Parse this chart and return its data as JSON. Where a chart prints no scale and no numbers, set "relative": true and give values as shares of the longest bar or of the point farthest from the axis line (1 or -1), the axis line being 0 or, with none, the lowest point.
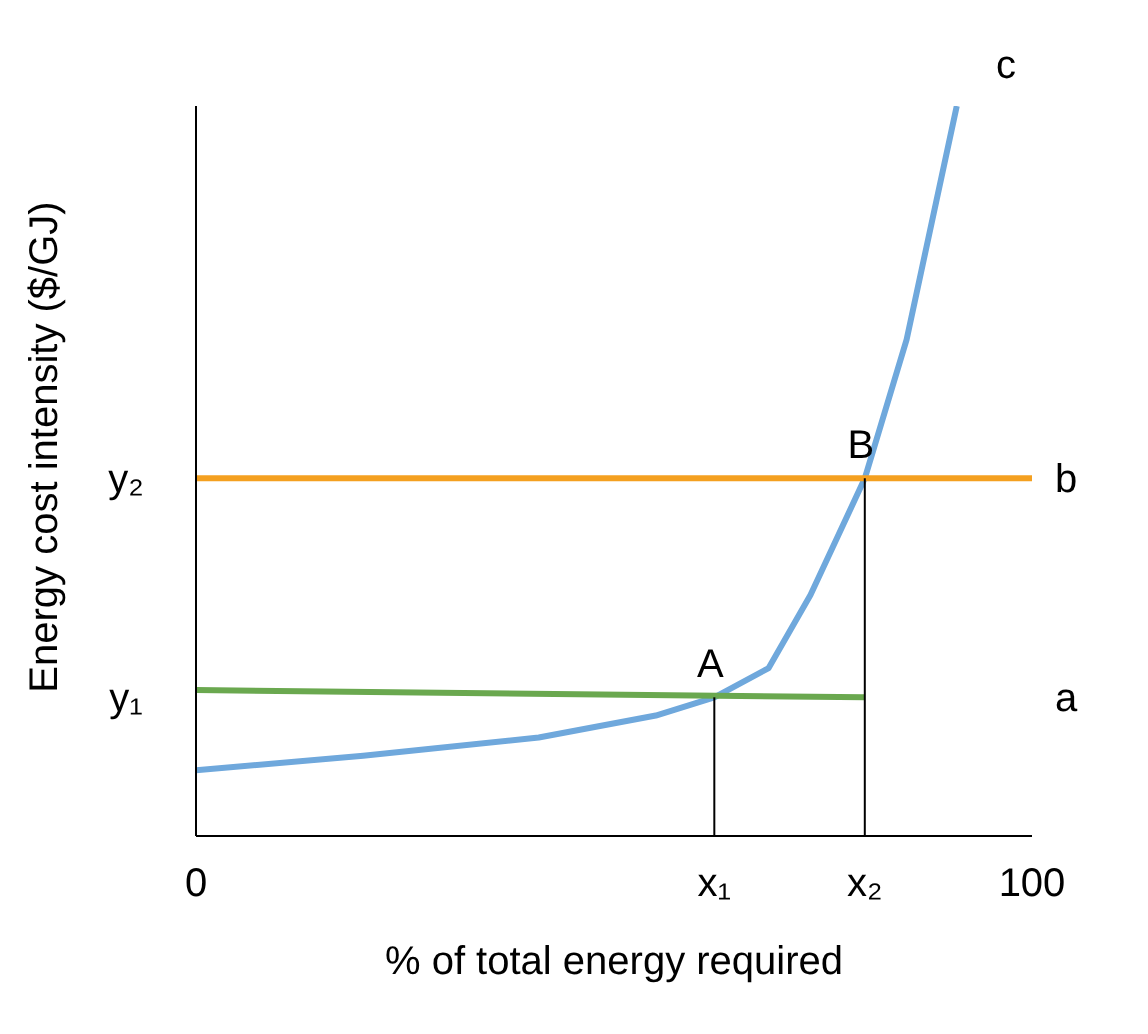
{
  "chart_data": {
    "type": "line",
    "relative": true,
    "xlabel": "% of total energy required",
    "ylabel": "Energy cost intensity ($/GJ)",
    "xlim": [
      0,
      100
    ],
    "xticks": [
      0,
      {
        "value": 62,
        "label": "x₁"
      },
      {
        "value": 80,
        "label": "x₂"
      },
      100
    ],
    "marker": "none",
    "series": [
      {
        "name": "c",
        "color": "#6fa8dc",
        "x": [
          0,
          20,
          41,
          55,
          62,
          68.5,
          73.5,
          80,
          85,
          91
        ],
        "values": [
          0.09,
          0.11,
          0.135,
          0.165,
          0.19,
          0.23,
          0.33,
          0.49,
          0.68,
          1
        ]
      },
      {
        "name": "b",
        "color": "#f4a020",
        "x": [
          0,
          100
        ],
        "values": [
          0.49,
          0.49
        ]
      },
      {
        "name": "a",
        "color": "#6aa84f",
        "x": [
          0,
          80
        ],
        "values": [
          0.2,
          0.19
        ]
      },
      {
        "color": "#000000",
        "x": [
          62,
          62
        ],
        "values": [
          0,
          0.19
        ]
      },
      {
        "color": "#000000",
        "x": [
          80,
          80
        ],
        "values": [
          0,
          0.49
        ]
      }
    ],
    "annotations": [
      {
        "text": "A",
        "x": 62,
        "y": 0.19
      },
      {
        "text": "B",
        "x": 80,
        "y": 0.49
      },
      {
        "text": "y₁",
        "x": 0,
        "y": 0.19
      },
      {
        "text": "y₂",
        "x": 0,
        "y": 0.49
      }
    ]
  }
}
